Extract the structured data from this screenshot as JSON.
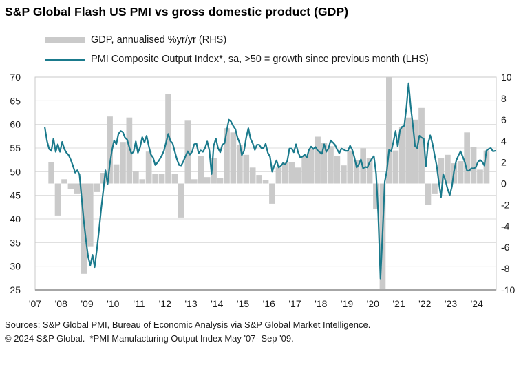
{
  "title": "S&P Global Flash US PMI vs gross domestic product (GDP)",
  "legend": {
    "gdp_label": "GDP, annualised %yr/yr (RHS)",
    "pmi_label": "PMI Composite Output Index*, sa, >50 = growth since previous month (LHS)"
  },
  "footer": {
    "line1": "Sources: S&P Global PMI, Bureau of Economic Analysis via S&P Global Market Intelligence.",
    "line2": "© 2024 S&P Global.  *PMI Manufacturing Output Index May '07- Sep '09."
  },
  "colors": {
    "pmi_line": "#1A7A8C",
    "gdp_bar": "#CACACA",
    "gridline": "#DBDBDB",
    "frame": "#C9C9C9",
    "axis_bottom": "#A6A6A6",
    "tick_text": "#1a1a1a",
    "background": "#FFFFFF"
  },
  "chart_data": {
    "type": "bar+line",
    "title": "S&P Global Flash US PMI vs gross domestic product (GDP)",
    "grid": "horizontal",
    "legend_position": "top-left",
    "axes": {
      "left": {
        "label": "PMI (LHS)",
        "min": 25,
        "max": 70,
        "step": 5,
        "ticks": [
          70,
          65,
          60,
          55,
          50,
          45,
          40,
          35,
          30,
          25
        ]
      },
      "right": {
        "label": "GDP annualised %yr/yr (RHS)",
        "min": -10,
        "max": 10,
        "step": 2,
        "ticks": [
          10,
          8,
          6,
          4,
          2,
          0,
          -2,
          -4,
          -6,
          -8,
          -10
        ]
      },
      "x": {
        "labels": [
          "'07",
          "'08",
          "'09",
          "'10",
          "'11",
          "'12",
          "'13",
          "'14",
          "'15",
          "'16",
          "'17",
          "'18",
          "'19",
          "'20",
          "'21",
          "'22",
          "'23",
          "'24"
        ],
        "start_year": 2007,
        "end": "2024.75"
      }
    },
    "series": [
      {
        "name": "GDP, annualised %yr/yr (RHS)",
        "type": "bar",
        "axis": "right",
        "frequency": "quarterly",
        "start": "2007-Q3",
        "note": "values clipped to axis range -10..10; 2020-Q2 and 2020-Q3 extend beyond axis",
        "values": [
          2.0,
          -3.0,
          0.4,
          -0.5,
          -1.0,
          -8.5,
          -5.9,
          -0.8,
          1.0,
          6.3,
          1.8,
          3.9,
          6.2,
          1.2,
          0.4,
          3.0,
          0.9,
          0.9,
          8.4,
          0.9,
          -3.2,
          5.9,
          0.4,
          2.6,
          0.6,
          2.4,
          0.5,
          5.2,
          4.8,
          3.6,
          2.7,
          1.5,
          0.8,
          0.3,
          -1.9,
          1.5,
          2.0,
          2.0,
          1.5,
          2.6,
          3.2,
          4.4,
          3.8,
          3.5,
          2.6,
          1.7,
          3.1,
          2.2,
          3.3,
          2.4,
          -2.4,
          -10,
          10,
          3.1,
          5.3,
          6.2,
          6.0,
          7.1,
          -2.0,
          -1.0,
          2.4,
          2.7,
          1.9,
          2.1,
          4.8,
          3.4,
          1.3,
          3.1
        ]
      },
      {
        "name": "PMI Composite Output Index*, sa (LHS)",
        "type": "line",
        "axis": "left",
        "frequency": "monthly",
        "start": "2007-05",
        "values": [
          59.3,
          56.5,
          54.8,
          54.4,
          57.0,
          54.2,
          55.8,
          54.2,
          56.3,
          54.8,
          54.0,
          53.5,
          52.5,
          51.2,
          49.8,
          50.3,
          49.4,
          44.5,
          39.5,
          35.5,
          32.0,
          30.2,
          32.4,
          29.8,
          33.5,
          37.5,
          42.0,
          46.0,
          50.3,
          47.4,
          51.5,
          54.5,
          56.6,
          55.8,
          58.0,
          58.6,
          58.4,
          57.2,
          56.8,
          55.2,
          53.8,
          54.2,
          56.4,
          54.0,
          55.2,
          57.3,
          56.2,
          57.6,
          55.4,
          53.6,
          53.0,
          51.4,
          51.9,
          52.6,
          53.4,
          54.4,
          56.2,
          58.0,
          56.5,
          56.0,
          54.3,
          52.6,
          51.4,
          51.3,
          52.2,
          53.3,
          54.3,
          53.6,
          54.2,
          55.8,
          56.0,
          53.9,
          54.5,
          54.2,
          55.0,
          56.4,
          54.5,
          49.5,
          55.5,
          57.0,
          55.0,
          54.1,
          55.7,
          56.0,
          58.6,
          61.0,
          60.6,
          59.7,
          59.0,
          57.2,
          56.1,
          53.5,
          54.4,
          57.2,
          59.2,
          57.0,
          56.0,
          54.6,
          55.7,
          55.7,
          55.0,
          55.0,
          55.9,
          54.0,
          53.2,
          50.0,
          51.3,
          52.4,
          50.9,
          51.2,
          51.8,
          51.5,
          52.3,
          54.9,
          54.9,
          54.1,
          55.8,
          54.1,
          53.0,
          53.2,
          53.6,
          53.0,
          54.6,
          55.3,
          54.8,
          55.2,
          54.5,
          54.1,
          53.8,
          55.8,
          54.2,
          54.9,
          56.6,
          56.2,
          55.7,
          54.7,
          53.9,
          54.9,
          54.7,
          54.4,
          54.4,
          55.5,
          54.6,
          53.0,
          50.9,
          51.5,
          52.6,
          50.7,
          51.0,
          50.9,
          52.0,
          52.7,
          53.3,
          49.6,
          40.9,
          27.4,
          37.0,
          47.9,
          50.3,
          54.6,
          54.3,
          56.3,
          58.6,
          55.3,
          58.7,
          59.5,
          59.7,
          63.5,
          68.7,
          63.7,
          59.9,
          55.4,
          55.0,
          57.6,
          57.2,
          57.0,
          51.1,
          55.9,
          57.7,
          56.0,
          53.6,
          51.2,
          47.7,
          44.6,
          49.5,
          48.2,
          46.4,
          45.0,
          46.8,
          50.1,
          52.3,
          53.4,
          54.3,
          53.2,
          52.0,
          50.2,
          50.2,
          50.7,
          50.7,
          50.9,
          52.0,
          52.5,
          52.1,
          51.3,
          54.5,
          54.8,
          55.0,
          54.3,
          54.4
        ]
      }
    ]
  }
}
